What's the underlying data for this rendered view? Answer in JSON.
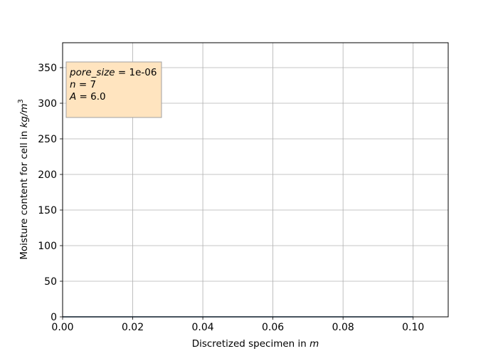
{
  "chart_data": {
    "type": "line",
    "title": "",
    "xlabel": "Discretized specimen in",
    "xlabel_unit": "m",
    "ylabel": "Moisture content for cell in",
    "ylabel_unit": "kg/m",
    "ylabel_unit_exp": "3",
    "xlim": [
      0.0,
      0.11
    ],
    "ylim": [
      0,
      385
    ],
    "xticks": [
      0.0,
      0.02,
      0.04,
      0.06,
      0.08,
      0.1
    ],
    "xtick_labels": [
      "0.00",
      "0.02",
      "0.04",
      "0.06",
      "0.08",
      "0.10"
    ],
    "yticks": [
      0,
      50,
      100,
      150,
      200,
      250,
      300,
      350
    ],
    "ytick_labels": [
      "0",
      "50",
      "100",
      "150",
      "200",
      "250",
      "300",
      "350"
    ],
    "grid": true,
    "series": [
      {
        "x": [
          0.0,
          0.02,
          0.04,
          0.06,
          0.08,
          0.1
        ],
        "y": [
          0,
          0,
          0,
          0,
          0,
          0
        ],
        "color": "#1f4e79"
      }
    ],
    "annotation": {
      "placement": "top-left",
      "lines": [
        {
          "var": "pore_size",
          "value": "1e-06"
        },
        {
          "var": "n",
          "value": "7"
        },
        {
          "var": "A",
          "value": "6.0"
        }
      ],
      "box_color": "#ffe4bf",
      "box_border": "#a0a0a0"
    },
    "colors": {
      "grid": "#b0b0b0",
      "axes": "#000000"
    }
  }
}
